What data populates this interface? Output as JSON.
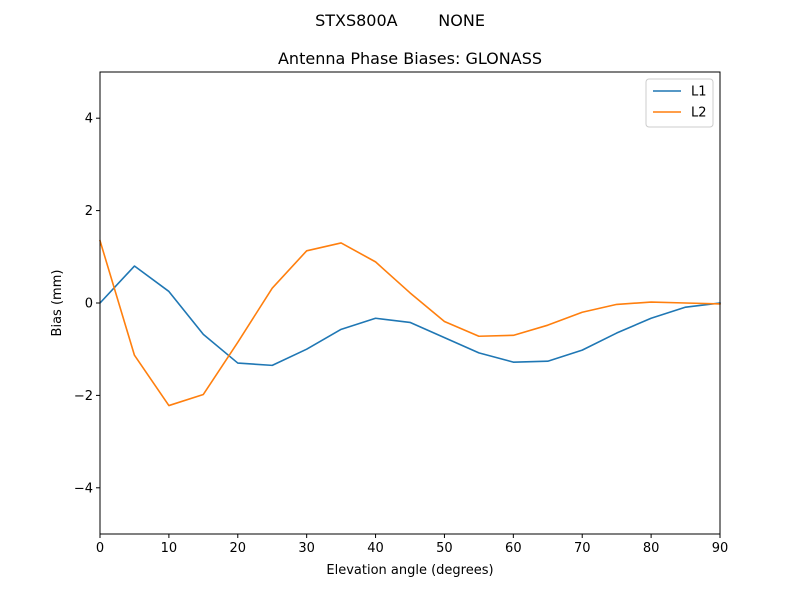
{
  "chart_data": {
    "type": "line",
    "suptitle": "STXS800A        NONE",
    "title": "Antenna Phase Biases: GLONASS",
    "xlabel": "Elevation angle (degrees)",
    "ylabel": "Bias (mm)",
    "xlim": [
      0,
      90
    ],
    "ylim": [
      -5,
      5
    ],
    "xticks": [
      0,
      10,
      20,
      30,
      40,
      50,
      60,
      70,
      80,
      90
    ],
    "yticks": [
      -4,
      -2,
      0,
      2,
      4
    ],
    "ytick_labels": [
      "−4",
      "−2",
      "0",
      "2",
      "4"
    ],
    "grid": false,
    "legend_position": "top-right",
    "x": [
      0,
      5,
      10,
      15,
      20,
      25,
      30,
      35,
      40,
      45,
      50,
      55,
      60,
      65,
      70,
      75,
      80,
      85,
      90
    ],
    "series": [
      {
        "name": "L1",
        "color": "#1f77b4",
        "values": [
          0.0,
          0.8,
          0.25,
          -0.68,
          -1.3,
          -1.35,
          -1.0,
          -0.57,
          -0.33,
          -0.42,
          -0.75,
          -1.08,
          -1.28,
          -1.26,
          -1.02,
          -0.65,
          -0.33,
          -0.09,
          0.0
        ]
      },
      {
        "name": "L2",
        "color": "#ff7f0e",
        "values": [
          1.35,
          -1.13,
          -2.22,
          -1.98,
          -0.85,
          0.32,
          1.13,
          1.3,
          0.89,
          0.22,
          -0.4,
          -0.72,
          -0.7,
          -0.48,
          -0.2,
          -0.03,
          0.02,
          0.0,
          -0.02
        ]
      }
    ]
  }
}
